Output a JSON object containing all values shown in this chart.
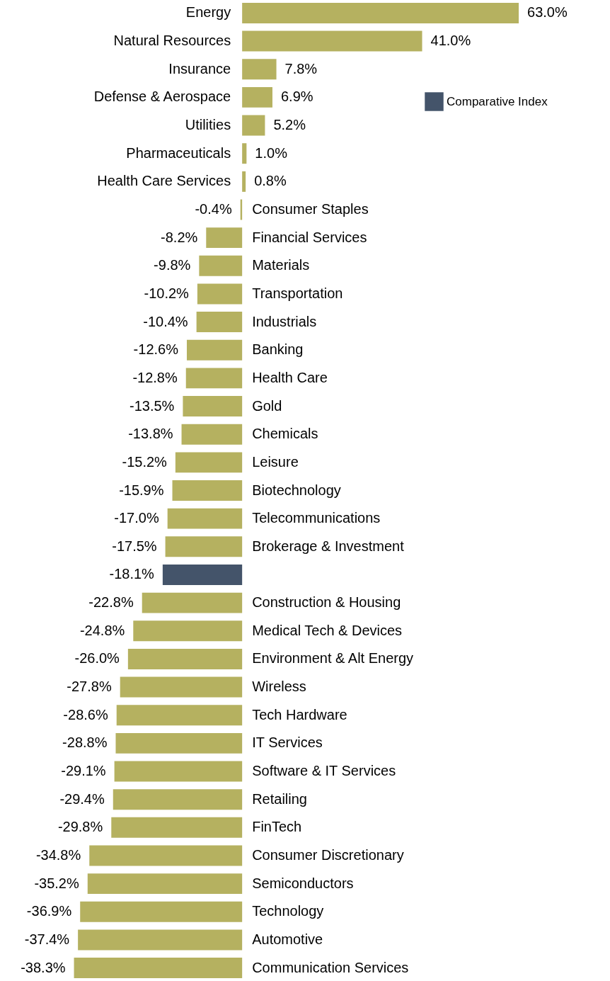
{
  "chart_data": {
    "type": "bar",
    "orientation": "horizontal",
    "legend": "top right",
    "categories": [
      "Energy",
      "Natural Resources",
      "Insurance",
      "Defense & Aerospace",
      "Utilities",
      "Pharmaceuticals",
      "Health Care Services",
      "Consumer Staples",
      "Financial Services",
      "Materials",
      "Transportation",
      "Industrials",
      "Banking",
      "Health Care",
      "Gold",
      "Chemicals",
      "Leisure",
      "Biotechnology",
      "Telecommunications",
      "Brokerage & Investment",
      null,
      "Construction & Housing",
      "Medical Tech & Devices",
      "Environment & Alt Energy",
      "Wireless",
      "Tech Hardware",
      "IT Services",
      "Software & IT Services",
      "Retailing",
      "FinTech",
      "Consumer Discretionary",
      "Semiconductors",
      "Technology",
      "Automotive",
      "Communication Services"
    ],
    "series": [
      {
        "color": "#b5b160",
        "values": [
          63.0,
          41.0,
          7.8,
          6.9,
          5.2,
          1.0,
          0.8,
          -0.4,
          -8.2,
          -9.8,
          -10.2,
          -10.4,
          -12.6,
          -12.8,
          -13.5,
          -13.8,
          -15.2,
          -15.9,
          -17.0,
          -17.5,
          null,
          -22.8,
          -24.8,
          -26.0,
          -27.8,
          -28.6,
          -28.8,
          -29.1,
          -29.4,
          -29.8,
          -34.8,
          -35.2,
          -36.9,
          -37.4,
          -38.3
        ],
        "value_labels": [
          "63.0%",
          "41.0%",
          "7.8%",
          "6.9%",
          "5.2%",
          "1.0%",
          "0.8%",
          "-0.4%",
          "-8.2%",
          "-9.8%",
          "-10.2%",
          "-10.4%",
          "-12.6%",
          "-12.8%",
          "-13.5%",
          "-13.8%",
          "-15.2%",
          "-15.9%",
          "-17.0%",
          "-17.5%",
          null,
          "-22.8%",
          "-24.8%",
          "-26.0%",
          "-27.8%",
          "-28.6%",
          "-28.8%",
          "-29.1%",
          "-29.4%",
          "-29.8%",
          "-34.8%",
          "-35.2%",
          "-36.9%",
          "-37.4%",
          "-38.3%"
        ]
      },
      {
        "name": "Comparative Index",
        "color": "#44546a",
        "values": [
          null,
          null,
          null,
          null,
          null,
          null,
          null,
          null,
          null,
          null,
          null,
          null,
          null,
          null,
          null,
          null,
          null,
          null,
          null,
          null,
          -18.1,
          null,
          null,
          null,
          null,
          null,
          null,
          null,
          null,
          null,
          null,
          null,
          null,
          null,
          null
        ],
        "value_labels": [
          null,
          null,
          null,
          null,
          null,
          null,
          null,
          null,
          null,
          null,
          null,
          null,
          null,
          null,
          null,
          null,
          null,
          null,
          null,
          null,
          "-18.1%",
          null,
          null,
          null,
          null,
          null,
          null,
          null,
          null,
          null,
          null,
          null,
          null,
          null,
          null
        ]
      }
    ]
  }
}
